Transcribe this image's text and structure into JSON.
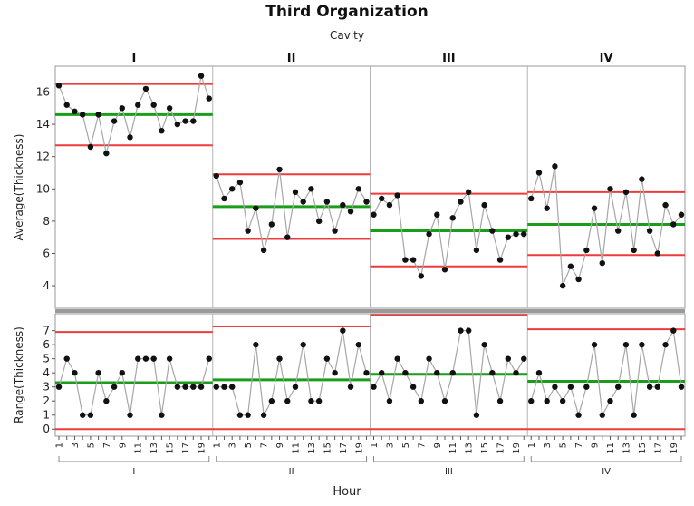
{
  "chart_data": {
    "type": "line",
    "title": "Third Organization",
    "group_label": "Cavity",
    "groups": [
      "I",
      "II",
      "III",
      "IV"
    ],
    "xlabel": "Hour",
    "x_tick_labels": [
      "1",
      "",
      "3",
      "",
      "5",
      "",
      "7",
      "",
      "9",
      "",
      "11",
      "",
      "13",
      "",
      "15",
      "",
      "17",
      "",
      "19",
      ""
    ],
    "colors": {
      "limit": "#ee3b3b",
      "center": "#1a9e1a",
      "line": "#a6a6a6",
      "point": "#111111"
    },
    "average_chart": {
      "ylabel": "Average(Thickness)",
      "ylim": [
        2.6,
        17.6
      ],
      "yticks": [
        4,
        6,
        8,
        10,
        12,
        14,
        16
      ],
      "panels": [
        {
          "group": "I",
          "ucl": 16.5,
          "center": 14.6,
          "lcl": 12.7,
          "values": [
            16.4,
            15.2,
            14.8,
            14.6,
            12.6,
            14.6,
            12.2,
            14.2,
            15.0,
            13.2,
            15.2,
            16.2,
            15.2,
            13.6,
            15.0,
            14.0,
            14.2,
            14.2,
            17.0,
            15.6
          ]
        },
        {
          "group": "II",
          "ucl": 10.9,
          "center": 8.9,
          "lcl": 6.9,
          "values": [
            10.8,
            9.4,
            10.0,
            10.4,
            7.4,
            8.8,
            6.2,
            7.8,
            11.2,
            7.0,
            9.8,
            9.2,
            10.0,
            8.0,
            9.2,
            7.4,
            9.0,
            8.6,
            10.0,
            9.2
          ]
        },
        {
          "group": "III",
          "ucl": 9.7,
          "center": 7.4,
          "lcl": 5.2,
          "values": [
            8.4,
            9.4,
            9.0,
            9.6,
            5.6,
            5.6,
            4.6,
            7.2,
            8.4,
            5.0,
            8.2,
            9.2,
            9.8,
            6.2,
            9.0,
            7.4,
            5.6,
            7.0,
            7.2,
            7.2
          ]
        },
        {
          "group": "IV",
          "ucl": 9.8,
          "center": 7.8,
          "lcl": 5.9,
          "values": [
            9.4,
            11.0,
            8.8,
            11.4,
            4.0,
            5.2,
            4.4,
            6.2,
            8.8,
            5.4,
            10.0,
            7.4,
            9.8,
            6.2,
            10.6,
            7.4,
            6.0,
            9.0,
            7.8,
            8.4
          ]
        }
      ]
    },
    "range_chart": {
      "ylabel": "Range(Thickness)",
      "ylim": [
        -0.5,
        8.2
      ],
      "yticks": [
        0,
        1,
        2,
        3,
        4,
        5,
        6,
        7
      ],
      "panels": [
        {
          "group": "I",
          "ucl": 6.9,
          "center": 3.3,
          "lcl": 0,
          "values": [
            3,
            5,
            4,
            1,
            1,
            4,
            2,
            3,
            4,
            1,
            5,
            5,
            5,
            1,
            5,
            3,
            3,
            3,
            3,
            5
          ]
        },
        {
          "group": "II",
          "ucl": 7.3,
          "center": 3.5,
          "lcl": 0,
          "values": [
            3,
            3,
            3,
            1,
            1,
            6,
            1,
            2,
            5,
            2,
            3,
            6,
            2,
            2,
            5,
            4,
            7,
            3,
            6,
            4
          ]
        },
        {
          "group": "III",
          "ucl": 8.1,
          "center": 3.9,
          "lcl": 0,
          "values": [
            3,
            4,
            2,
            5,
            4,
            3,
            2,
            5,
            4,
            2,
            4,
            7,
            7,
            1,
            6,
            4,
            2,
            5,
            4,
            5
          ]
        },
        {
          "group": "IV",
          "ucl": 7.1,
          "center": 3.4,
          "lcl": 0,
          "values": [
            2,
            4,
            2,
            3,
            2,
            3,
            1,
            3,
            6,
            1,
            2,
            3,
            6,
            1,
            6,
            3,
            3,
            6,
            7,
            3
          ]
        }
      ]
    }
  }
}
